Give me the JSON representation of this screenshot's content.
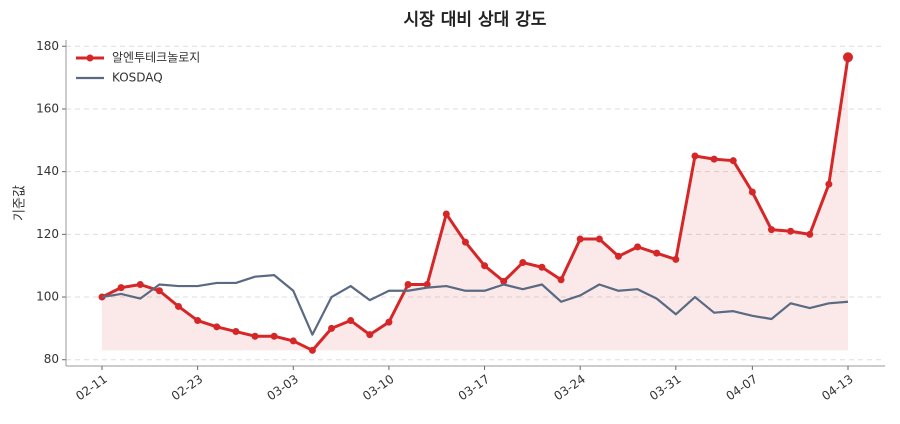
{
  "chart_data": {
    "type": "line",
    "title": "시장 대비 상대 강도",
    "y_label": "기준값",
    "categories": [
      "02-11",
      null,
      null,
      null,
      null,
      "02-23",
      null,
      null,
      null,
      null,
      "03-03",
      null,
      null,
      null,
      null,
      "03-10",
      null,
      null,
      null,
      null,
      "03-17",
      null,
      null,
      null,
      null,
      "03-24",
      null,
      null,
      null,
      null,
      "03-31",
      null,
      null,
      null,
      "04-07",
      null,
      null,
      null,
      null,
      "04-13"
    ],
    "series": [
      {
        "name": "알엔투테크놀로지",
        "color": "#d62728",
        "markers": true,
        "fill": true,
        "values": [
          100,
          103,
          104,
          102,
          97,
          92.5,
          90.5,
          89,
          87.5,
          87.5,
          86,
          83,
          90,
          92.5,
          88,
          92,
          104,
          104,
          126.5,
          117.5,
          110,
          105,
          111,
          109.5,
          105.5,
          118.5,
          118.5,
          113,
          116,
          114,
          112,
          145,
          144,
          143.5,
          133.5,
          121.5,
          121,
          120,
          136,
          176.5
        ]
      },
      {
        "name": "KOSDAQ",
        "color": "#5a6a82",
        "markers": false,
        "fill": false,
        "values": [
          100,
          101,
          99.5,
          104,
          103.5,
          103.5,
          104.5,
          104.5,
          106.5,
          107,
          102,
          88,
          100,
          103.5,
          99,
          102,
          102,
          103,
          103.5,
          102,
          102,
          104,
          102.5,
          104,
          98.5,
          100.5,
          104,
          102,
          102.5,
          99.5,
          94.5,
          100,
          95,
          95.5,
          94,
          93,
          98,
          96.5,
          98,
          98.5
        ]
      }
    ],
    "ylim": [
      78,
      182
    ],
    "yticks": [
      80,
      100,
      120,
      140,
      160,
      180
    ],
    "grid": true,
    "legend": "upper left"
  }
}
